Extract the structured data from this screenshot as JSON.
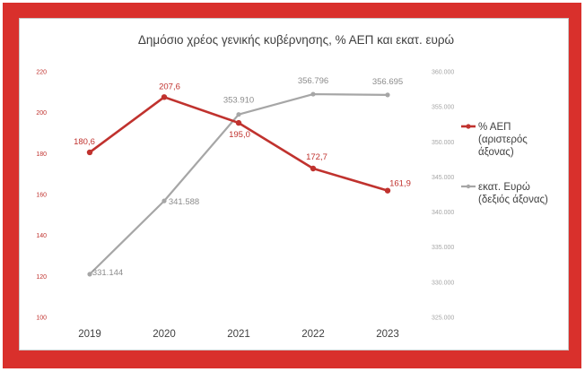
{
  "chart_data": {
    "type": "line",
    "title": "Δημόσιο χρέος γενικής κυβέρνησης, % ΑΕΠ και εκατ. ευρώ",
    "categories": [
      "2019",
      "2020",
      "2021",
      "2022",
      "2023"
    ],
    "y_left": {
      "ylim": [
        100,
        220
      ],
      "ticks": [
        "220",
        "200",
        "180",
        "160",
        "140",
        "120",
        "100"
      ]
    },
    "y_right": {
      "ylim": [
        325000,
        360000
      ],
      "ticks": [
        "360.000",
        "355.000",
        "350.000",
        "345.000",
        "340.000",
        "335.000",
        "330.000",
        "325.000"
      ]
    },
    "series": [
      {
        "name": "% ΑΕΠ (αριστερός άξονας)",
        "legend_lines": [
          "% ΑΕΠ",
          "(αριστερός",
          "άξονας)"
        ],
        "axis": "left",
        "color": "#c0322e",
        "values": [
          180.6,
          207.6,
          195.0,
          172.7,
          161.9
        ],
        "labels": [
          "180,6",
          "207,6",
          "195,0",
          "172,7",
          "161,9"
        ]
      },
      {
        "name": "εκατ. Ευρώ (δεξιός άξονας)",
        "legend_lines": [
          "εκατ. Ευρώ",
          "(δεξιός άξονας)"
        ],
        "axis": "right",
        "color": "#a6a6a6",
        "values": [
          331144,
          341588,
          353910,
          356796,
          356695
        ],
        "labels": [
          "331.144",
          "341.588",
          "353.910",
          "356.796",
          "356.695"
        ]
      }
    ],
    "grid": false,
    "legend": "right"
  }
}
